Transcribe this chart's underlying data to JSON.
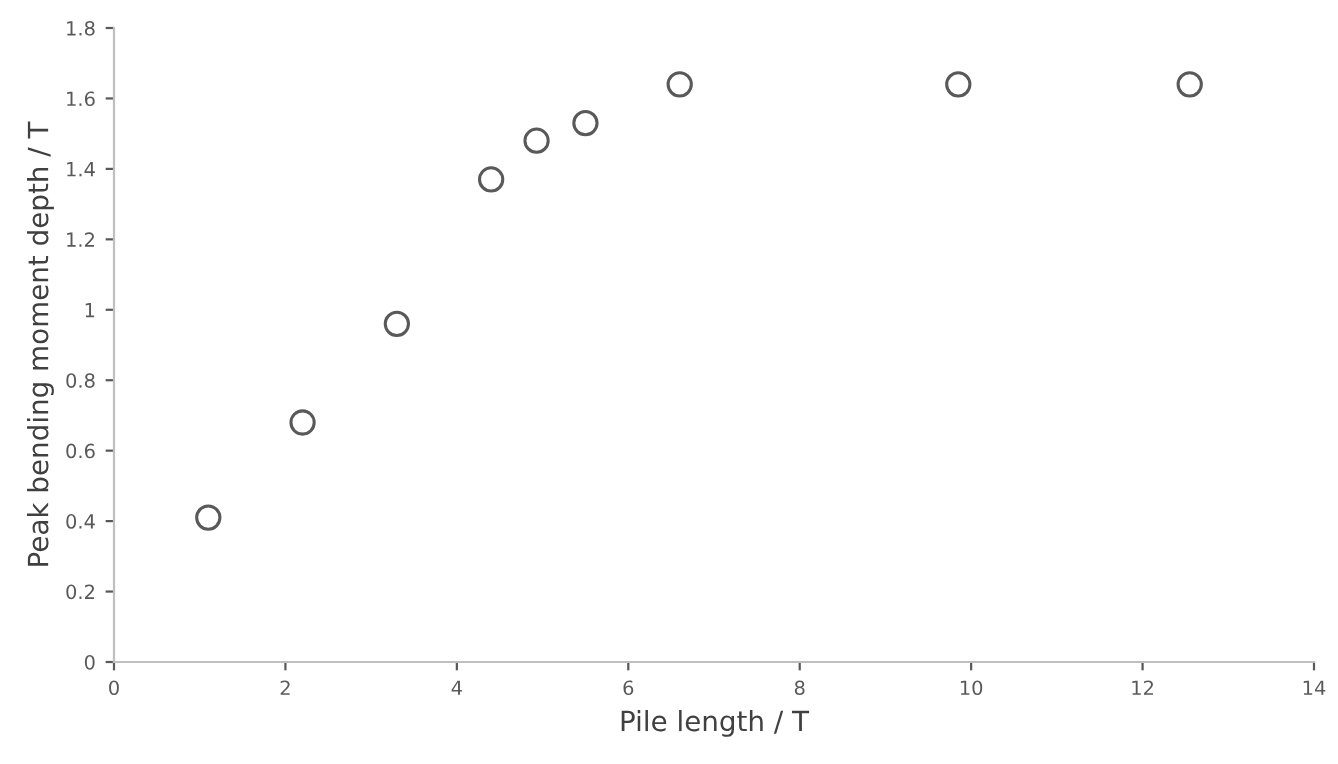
{
  "chart_data": {
    "type": "scatter",
    "xlabel": "Pile length / T",
    "ylabel": "Peak bending moment depth / T",
    "x": [
      1.1,
      2.2,
      3.3,
      4.4,
      4.93,
      5.5,
      6.6,
      9.85,
      12.55
    ],
    "values": [
      0.41,
      0.68,
      0.96,
      1.37,
      1.48,
      1.53,
      1.64,
      1.64,
      1.64
    ],
    "color": "#595959",
    "marker": "circle",
    "xlim": [
      0,
      14
    ],
    "xticks": [
      0,
      2,
      4,
      6,
      8,
      10,
      12,
      14
    ],
    "ylim": [
      0,
      1.8
    ],
    "yticks": [
      0,
      0.2,
      0.4,
      0.6,
      0.8,
      1,
      1.2,
      1.4,
      1.6,
      1.8
    ],
    "grid": false,
    "legend": false
  }
}
